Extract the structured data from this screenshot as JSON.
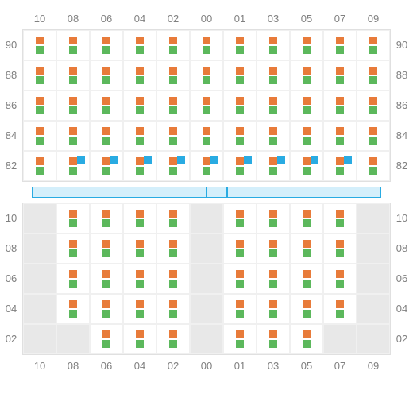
{
  "colors": {
    "orange": "#e87b3a",
    "green": "#5cb85c",
    "blue": "#29abe2",
    "bar_fill": "#d4effb",
    "bar_border": "#29abe2",
    "label": "#808080",
    "grid_border": "#e0e0e0",
    "cell_border": "#f0f0f0",
    "empty_cell": "#e8e8e8"
  },
  "columns": [
    "10",
    "08",
    "06",
    "04",
    "02",
    "00",
    "01",
    "03",
    "05",
    "07",
    "09"
  ],
  "top": {
    "rows": [
      "90",
      "88",
      "86",
      "84",
      "82"
    ],
    "cells": [
      [
        {
          "o": 1,
          "g": 1
        },
        {
          "o": 1,
          "g": 1
        },
        {
          "o": 1,
          "g": 1
        },
        {
          "o": 1,
          "g": 1
        },
        {
          "o": 1,
          "g": 1
        },
        {
          "o": 1,
          "g": 1
        },
        {
          "o": 1,
          "g": 1
        },
        {
          "o": 1,
          "g": 1
        },
        {
          "o": 1,
          "g": 1
        },
        {
          "o": 1,
          "g": 1
        },
        {
          "o": 1,
          "g": 1
        }
      ],
      [
        {
          "o": 1,
          "g": 1
        },
        {
          "o": 1,
          "g": 1
        },
        {
          "o": 1,
          "g": 1
        },
        {
          "o": 1,
          "g": 1
        },
        {
          "o": 1,
          "g": 1
        },
        {
          "o": 1,
          "g": 1
        },
        {
          "o": 1,
          "g": 1
        },
        {
          "o": 1,
          "g": 1
        },
        {
          "o": 1,
          "g": 1
        },
        {
          "o": 1,
          "g": 1
        },
        {
          "o": 1,
          "g": 1
        }
      ],
      [
        {
          "o": 1,
          "g": 1
        },
        {
          "o": 1,
          "g": 1
        },
        {
          "o": 1,
          "g": 1
        },
        {
          "o": 1,
          "g": 1
        },
        {
          "o": 1,
          "g": 1
        },
        {
          "o": 1,
          "g": 1
        },
        {
          "o": 1,
          "g": 1
        },
        {
          "o": 1,
          "g": 1
        },
        {
          "o": 1,
          "g": 1
        },
        {
          "o": 1,
          "g": 1
        },
        {
          "o": 1,
          "g": 1
        }
      ],
      [
        {
          "o": 1,
          "g": 1
        },
        {
          "o": 1,
          "g": 1
        },
        {
          "o": 1,
          "g": 1
        },
        {
          "o": 1,
          "g": 1
        },
        {
          "o": 1,
          "g": 1
        },
        {
          "o": 1,
          "g": 1
        },
        {
          "o": 1,
          "g": 1
        },
        {
          "o": 1,
          "g": 1
        },
        {
          "o": 1,
          "g": 1
        },
        {
          "o": 1,
          "g": 1
        },
        {
          "o": 1,
          "g": 1
        }
      ],
      [
        {
          "o": 1,
          "g": 1
        },
        {
          "o": 1,
          "g": 1,
          "b": 1
        },
        {
          "o": 1,
          "g": 1,
          "b": 1
        },
        {
          "o": 1,
          "g": 1,
          "b": 1
        },
        {
          "o": 1,
          "g": 1,
          "b": 1
        },
        {
          "o": 1,
          "g": 1,
          "b": 1
        },
        {
          "o": 1,
          "g": 1,
          "b": 1
        },
        {
          "o": 1,
          "g": 1,
          "b": 1
        },
        {
          "o": 1,
          "g": 1,
          "b": 1
        },
        {
          "o": 1,
          "g": 1,
          "b": 1
        },
        {
          "o": 1,
          "g": 1
        }
      ]
    ]
  },
  "bar": {
    "segments": [
      50,
      6,
      44
    ]
  },
  "bottom": {
    "rows": [
      "10",
      "08",
      "06",
      "04",
      "02"
    ],
    "cells": [
      [
        {
          "e": 1
        },
        {
          "o": 1,
          "g": 1
        },
        {
          "o": 1,
          "g": 1
        },
        {
          "o": 1,
          "g": 1
        },
        {
          "o": 1,
          "g": 1
        },
        {
          "e": 1
        },
        {
          "o": 1,
          "g": 1
        },
        {
          "o": 1,
          "g": 1
        },
        {
          "o": 1,
          "g": 1
        },
        {
          "o": 1,
          "g": 1
        },
        {
          "e": 1
        }
      ],
      [
        {
          "e": 1
        },
        {
          "o": 1,
          "g": 1
        },
        {
          "o": 1,
          "g": 1
        },
        {
          "o": 1,
          "g": 1
        },
        {
          "o": 1,
          "g": 1
        },
        {
          "e": 1
        },
        {
          "o": 1,
          "g": 1
        },
        {
          "o": 1,
          "g": 1
        },
        {
          "o": 1,
          "g": 1
        },
        {
          "o": 1,
          "g": 1
        },
        {
          "e": 1
        }
      ],
      [
        {
          "e": 1
        },
        {
          "o": 1,
          "g": 1
        },
        {
          "o": 1,
          "g": 1
        },
        {
          "o": 1,
          "g": 1
        },
        {
          "o": 1,
          "g": 1
        },
        {
          "e": 1
        },
        {
          "o": 1,
          "g": 1
        },
        {
          "o": 1,
          "g": 1
        },
        {
          "o": 1,
          "g": 1
        },
        {
          "o": 1,
          "g": 1
        },
        {
          "e": 1
        }
      ],
      [
        {
          "e": 1
        },
        {
          "o": 1,
          "g": 1
        },
        {
          "o": 1,
          "g": 1
        },
        {
          "o": 1,
          "g": 1
        },
        {
          "o": 1,
          "g": 1
        },
        {
          "e": 1
        },
        {
          "o": 1,
          "g": 1
        },
        {
          "o": 1,
          "g": 1
        },
        {
          "o": 1,
          "g": 1
        },
        {
          "o": 1,
          "g": 1
        },
        {
          "e": 1
        }
      ],
      [
        {
          "e": 1
        },
        {
          "e": 1
        },
        {
          "o": 1,
          "g": 1
        },
        {
          "o": 1,
          "g": 1
        },
        {
          "o": 1,
          "g": 1
        },
        {
          "e": 1
        },
        {
          "o": 1,
          "g": 1
        },
        {
          "o": 1,
          "g": 1
        },
        {
          "o": 1,
          "g": 1
        },
        {
          "e": 1
        },
        {
          "e": 1
        }
      ]
    ]
  }
}
